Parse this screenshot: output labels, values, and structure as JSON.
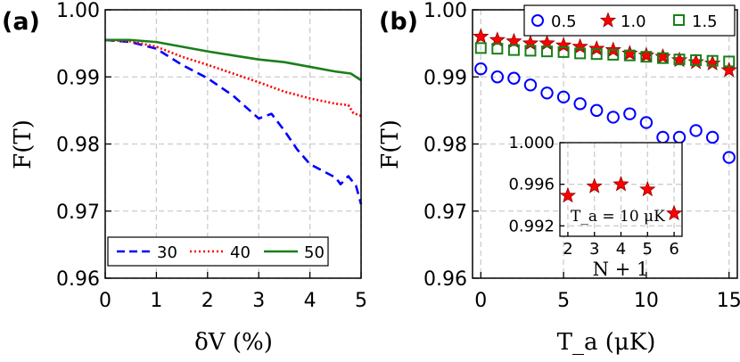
{
  "chart_data": [
    {
      "id": "a",
      "type": "line",
      "panel_label": "(a)",
      "xlabel": "δV (%)",
      "ylabel": "F(T)",
      "xlim": [
        0,
        5
      ],
      "ylim": [
        0.96,
        1.0
      ],
      "xticks": [
        "0",
        "1",
        "2",
        "3",
        "4",
        "5"
      ],
      "yticks": [
        "0.96",
        "0.97",
        "0.98",
        "0.99",
        "1.00"
      ],
      "grid": true,
      "legend_position": "bottom",
      "series": [
        {
          "name": "30",
          "style": "dashed",
          "color": "#0000ff",
          "x": [
            0,
            0.5,
            1,
            1.5,
            2,
            2.5,
            3,
            3.25,
            3.5,
            3.75,
            4,
            4.25,
            4.5,
            4.6,
            4.75,
            4.9,
            5
          ],
          "y": [
            0.9955,
            0.9952,
            0.9942,
            0.9918,
            0.9898,
            0.9872,
            0.9838,
            0.9845,
            0.982,
            0.9792,
            0.977,
            0.976,
            0.975,
            0.974,
            0.9752,
            0.9738,
            0.971
          ]
        },
        {
          "name": "40",
          "style": "dotted",
          "color": "#ff0000",
          "x": [
            0,
            0.5,
            1,
            1.5,
            2,
            2.5,
            3,
            3.5,
            4,
            4.5,
            4.75,
            4.85,
            5
          ],
          "y": [
            0.9955,
            0.9953,
            0.9945,
            0.993,
            0.9918,
            0.9905,
            0.9892,
            0.9878,
            0.9868,
            0.986,
            0.9858,
            0.9846,
            0.9842
          ]
        },
        {
          "name": "50",
          "style": "solid",
          "color": "#1a7f1a",
          "x": [
            0,
            0.5,
            1,
            1.5,
            2,
            2.5,
            3,
            3.5,
            4,
            4.5,
            4.8,
            5
          ],
          "y": [
            0.9955,
            0.9955,
            0.9952,
            0.9945,
            0.9938,
            0.9932,
            0.9926,
            0.9922,
            0.9915,
            0.9908,
            0.9905,
            0.9895
          ]
        }
      ]
    },
    {
      "id": "b",
      "type": "scatter",
      "panel_label": "(b)",
      "xlabel": "T_a (μK)",
      "ylabel": "F(T)",
      "xlim": [
        -0.5,
        15.5
      ],
      "ylim": [
        0.96,
        1.0
      ],
      "xticks": [
        "0",
        "5",
        "10",
        "15"
      ],
      "yticks": [
        "0.96",
        "0.97",
        "0.98",
        "0.99",
        "1.00"
      ],
      "grid": true,
      "legend_position": "top",
      "series": [
        {
          "name": "0.5",
          "marker": "circle",
          "color": "#0000ff",
          "x": [
            0,
            1,
            2,
            3,
            4,
            5,
            6,
            7,
            8,
            9,
            10,
            11,
            12,
            13,
            14,
            15
          ],
          "y": [
            0.9912,
            0.99,
            0.9898,
            0.9888,
            0.9876,
            0.987,
            0.986,
            0.985,
            0.984,
            0.9845,
            0.9832,
            0.981,
            0.981,
            0.982,
            0.981,
            0.978
          ]
        },
        {
          "name": "1.0",
          "marker": "star",
          "color": "#ff0000",
          "x": [
            0,
            1,
            2,
            3,
            4,
            5,
            6,
            7,
            8,
            9,
            10,
            11,
            12,
            13,
            14,
            15
          ],
          "y": [
            0.996,
            0.9955,
            0.9953,
            0.995,
            0.995,
            0.9947,
            0.9945,
            0.9942,
            0.994,
            0.9935,
            0.9932,
            0.993,
            0.9925,
            0.9922,
            0.992,
            0.991
          ]
        },
        {
          "name": "1.5",
          "marker": "square",
          "color": "#1a7f1a",
          "x": [
            0,
            1,
            2,
            3,
            4,
            5,
            6,
            7,
            8,
            9,
            10,
            11,
            12,
            13,
            14,
            15
          ],
          "y": [
            0.9943,
            0.9942,
            0.994,
            0.9939,
            0.9938,
            0.9937,
            0.9935,
            0.9934,
            0.9933,
            0.9932,
            0.993,
            0.9928,
            0.9926,
            0.9925,
            0.9924,
            0.9923
          ]
        }
      ]
    },
    {
      "id": "inset",
      "type": "scatter",
      "parent": "b",
      "xlabel": "N + 1",
      "ylabel": "",
      "xlim": [
        1.7,
        6.3
      ],
      "ylim": [
        0.991,
        1.0
      ],
      "xticks": [
        "2",
        "3",
        "4",
        "5",
        "6"
      ],
      "yticks": [
        "0.992",
        "0.996",
        "1.000"
      ],
      "grid": true,
      "annotation": "T_a = 10 μK",
      "series": [
        {
          "name": "inset",
          "marker": "star",
          "color": "#ff0000",
          "x": [
            2,
            3,
            4,
            5,
            6
          ],
          "y": [
            0.9949,
            0.9958,
            0.996,
            0.9955,
            0.9932
          ]
        }
      ]
    }
  ]
}
